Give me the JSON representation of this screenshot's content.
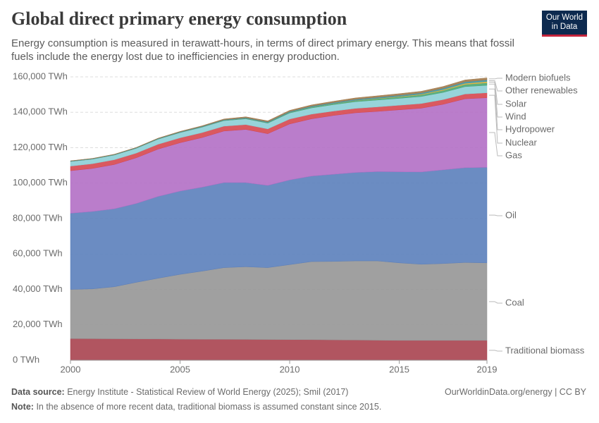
{
  "header": {
    "title": "Global direct primary energy consumption",
    "subtitle": "Energy consumption is measured in terawatt-hours, in terms of direct primary energy. This means that fossil fuels include the energy lost due to inefficiencies in energy production.",
    "logo": [
      "Our World",
      "in Data"
    ]
  },
  "chart_data": {
    "type": "stacked-area",
    "x": [
      2000,
      2001,
      2002,
      2003,
      2004,
      2005,
      2006,
      2007,
      2008,
      2009,
      2010,
      2011,
      2012,
      2013,
      2014,
      2015,
      2016,
      2017,
      2018,
      2019
    ],
    "xlim": [
      2000,
      2019
    ],
    "xticks": [
      2000,
      2005,
      2010,
      2015,
      2019
    ],
    "ylim": [
      0,
      160000
    ],
    "yticks": [
      {
        "value": 0,
        "label": "0 TWh"
      },
      {
        "value": 20000,
        "label": "20,000 TWh"
      },
      {
        "value": 40000,
        "label": "40,000 TWh"
      },
      {
        "value": 60000,
        "label": "60,000 TWh"
      },
      {
        "value": 80000,
        "label": "80,000 TWh"
      },
      {
        "value": 100000,
        "label": "100,000 TWh"
      },
      {
        "value": 120000,
        "label": "120,000 TWh"
      },
      {
        "value": 140000,
        "label": "140,000 TWh"
      },
      {
        "value": 160000,
        "label": "160,000 TWh"
      }
    ],
    "grid": true,
    "series": [
      {
        "name": "Traditional biomass",
        "color": "#a8434f",
        "values": [
          12200,
          12150,
          12100,
          12050,
          12000,
          11900,
          11850,
          11800,
          11750,
          11700,
          11650,
          11600,
          11500,
          11400,
          11300,
          11200,
          11200,
          11200,
          11200,
          11200
        ]
      },
      {
        "name": "Coal",
        "color": "#969696",
        "values": [
          27800,
          28150,
          29400,
          31950,
          34300,
          36600,
          38450,
          40500,
          41050,
          40600,
          42350,
          44100,
          44300,
          44700,
          44800,
          43800,
          43000,
          43400,
          44000,
          43800
        ]
      },
      {
        "name": "Oil",
        "color": "#5b7fbb",
        "values": [
          43000,
          43700,
          44000,
          44500,
          46200,
          47000,
          47400,
          48000,
          47500,
          46400,
          47800,
          48300,
          49200,
          49900,
          50400,
          51400,
          52100,
          52900,
          53500,
          53900
        ]
      },
      {
        "name": "Gas",
        "color": "#b36fc5",
        "values": [
          24000,
          24300,
          25000,
          25800,
          26700,
          27300,
          28000,
          29100,
          30000,
          29200,
          31600,
          32300,
          33200,
          33700,
          34000,
          35000,
          36000,
          37000,
          38900,
          39300
        ]
      },
      {
        "name": "Nuclear",
        "color": "#d6474f",
        "values": [
          2580,
          2650,
          2700,
          2640,
          2750,
          2770,
          2800,
          2750,
          2740,
          2700,
          2760,
          2650,
          2470,
          2490,
          2540,
          2570,
          2610,
          2640,
          2700,
          2800
        ]
      },
      {
        "name": "Hydropower",
        "color": "#8ccfd6",
        "values": [
          2650,
          2600,
          2660,
          2700,
          2850,
          2950,
          3050,
          3100,
          3250,
          3250,
          3430,
          3500,
          3650,
          3780,
          3870,
          3880,
          3990,
          4060,
          4170,
          4220
        ]
      },
      {
        "name": "Wind",
        "color": "#4aa673",
        "values": [
          31,
          38,
          52,
          63,
          85,
          104,
          132,
          171,
          221,
          277,
          346,
          437,
          522,
          636,
          712,
          831,
          959,
          1140,
          1270,
          1420
        ]
      },
      {
        "name": "Solar",
        "color": "#e0b33a",
        "values": [
          1,
          1,
          2,
          3,
          4,
          4,
          6,
          8,
          12,
          20,
          32,
          64,
          100,
          135,
          190,
          250,
          330,
          450,
          580,
          720
        ]
      },
      {
        "name": "Other renewables",
        "color": "#3a95a8",
        "values": [
          250,
          260,
          270,
          290,
          310,
          330,
          350,
          370,
          400,
          430,
          470,
          510,
          550,
          590,
          630,
          680,
          730,
          790,
          850,
          900
        ]
      },
      {
        "name": "Modern biofuels",
        "color": "#a17a4c",
        "values": [
          100,
          110,
          130,
          160,
          200,
          250,
          320,
          420,
          520,
          580,
          650,
          700,
          720,
          780,
          850,
          900,
          930,
          980,
          1080,
          1150
        ]
      }
    ]
  },
  "footer": {
    "source_label": "Data source:",
    "source": "Energy Institute - Statistical Review of World Energy (2025); Smil (2017)",
    "url": "OurWorldinData.org/energy | CC BY",
    "note_label": "Note:",
    "note": "In the absence of more recent data, traditional biomass is assumed constant since 2015."
  }
}
